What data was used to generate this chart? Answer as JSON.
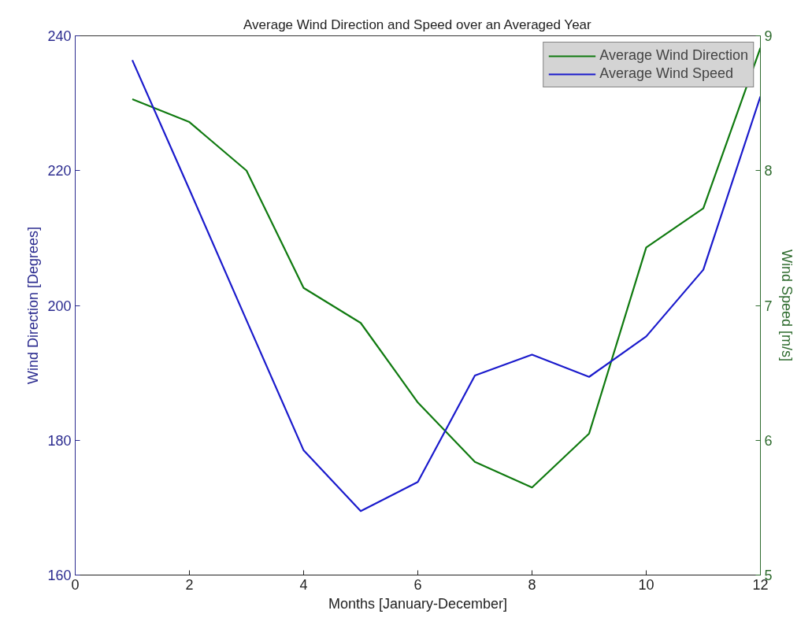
{
  "chart_data": {
    "type": "line",
    "title": "Average Wind Direction and Speed over an Averaged Year",
    "xlabel": "Months [January-December]",
    "ylabel": "Wind Direction [Degrees]",
    "y2label": "Wind Speed [m/s]",
    "x": [
      1,
      2,
      3,
      4,
      5,
      6,
      7,
      8,
      9,
      10,
      11,
      12
    ],
    "series": [
      {
        "name": "Average Wind Direction",
        "color": "#107a10",
        "axis": "y2",
        "values": [
          8.53,
          8.36,
          8.0,
          7.13,
          6.87,
          6.28,
          5.84,
          5.65,
          6.05,
          7.43,
          7.72,
          8.91
        ]
      },
      {
        "name": "Average Wind Speed",
        "color": "#1a1acc",
        "values": [
          236.4,
          217.2,
          197.8,
          178.5,
          169.5,
          173.8,
          189.6,
          192.7,
          189.4,
          195.4,
          205.3,
          231.0
        ]
      }
    ],
    "xlim": [
      0,
      12
    ],
    "xticks": [
      0,
      2,
      4,
      6,
      8,
      10,
      12
    ],
    "ylim": [
      160,
      240
    ],
    "yticks": [
      160,
      180,
      200,
      220,
      240
    ],
    "y2lim": [
      5,
      9
    ],
    "y2ticks": [
      5,
      6,
      7,
      8,
      9
    ],
    "grid": false,
    "legend": "top right",
    "line_style": "solid",
    "marker": "none"
  }
}
